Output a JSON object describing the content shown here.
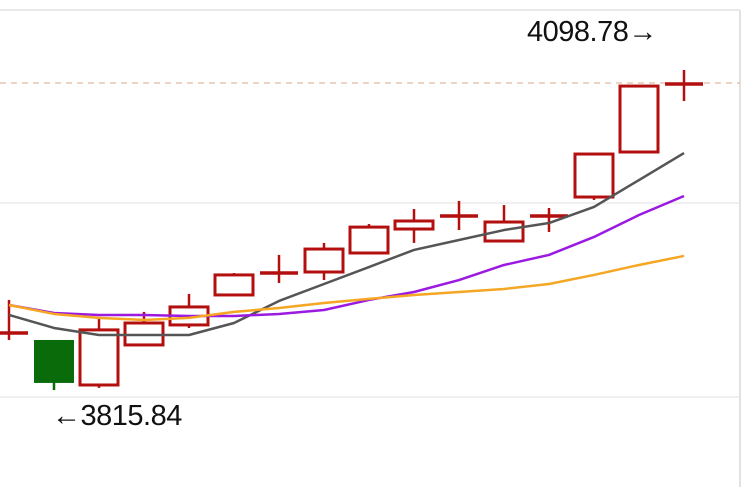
{
  "chart_data": {
    "type": "candlestick",
    "ylim": [
      3730.1,
      4160.7
    ],
    "grid": true,
    "reference_lines": [
      3981.2,
      3809.7
    ],
    "last_price_line": 4087.3,
    "annotations": {
      "max_label": "4098.78→",
      "min_label": "←3815.84"
    },
    "colors": {
      "up": "#b30f0f",
      "down": "#0a6b0a",
      "ma1": "#555555",
      "ma2": "#9b19e0",
      "ma3": "#f5a623",
      "grid": "#e2e2e2",
      "last_line": "#d9a88a"
    },
    "candles": [
      {
        "open": 3866.3,
        "close": 3866.3,
        "high": 3895.5,
        "low": 3860.1
      },
      {
        "open": 3860.1,
        "close": 3822.1,
        "high": 3860.1,
        "low": 3815.8
      },
      {
        "open": 3820.3,
        "close": 3869.0,
        "high": 3879.6,
        "low": 3817.7
      },
      {
        "open": 3855.7,
        "close": 3875.1,
        "high": 3884.9,
        "low": 3855.7
      },
      {
        "open": 3873.4,
        "close": 3889.3,
        "high": 3900.8,
        "low": 3870.7
      },
      {
        "open": 3899.9,
        "close": 3917.6,
        "high": 3919.3,
        "low": 3899.9
      },
      {
        "open": 3919.3,
        "close": 3919.3,
        "high": 3935.3,
        "low": 3910.5
      },
      {
        "open": 3920.2,
        "close": 3940.5,
        "high": 3945.9,
        "low": 3913.1
      },
      {
        "open": 3937.0,
        "close": 3959.9,
        "high": 3962.6,
        "low": 3937.0
      },
      {
        "open": 3958.2,
        "close": 3965.3,
        "high": 3975.9,
        "low": 3945.9
      },
      {
        "open": 3969.7,
        "close": 3969.7,
        "high": 3983.0,
        "low": 3957.3
      },
      {
        "open": 3947.6,
        "close": 3964.4,
        "high": 3979.4,
        "low": 3947.6
      },
      {
        "open": 3969.7,
        "close": 3969.7,
        "high": 3976.8,
        "low": 3955.6
      },
      {
        "open": 3986.5,
        "close": 4024.5,
        "high": 4025.4,
        "low": 3983.9
      },
      {
        "open": 4026.3,
        "close": 4084.6,
        "high": 4084.6,
        "low": 4026.3
      },
      {
        "open": 4086.4,
        "close": 4086.4,
        "high": 4098.8,
        "low": 4071.4
      }
    ],
    "series": [
      {
        "values": [
          3882.2,
          3870.7,
          3864.5,
          3864.5,
          3864.5,
          3875.1,
          3894.6,
          3909.6,
          3924.6,
          3939.7,
          3948.5,
          3957.3,
          3963.5,
          3977.7,
          4001.5,
          4025.4
        ]
      },
      {
        "values": [
          3891.0,
          3884.0,
          3882.2,
          3882.2,
          3881.3,
          3881.3,
          3883.1,
          3886.6,
          3895.5,
          3902.5,
          3913.1,
          3926.4,
          3935.3,
          3951.2,
          3970.6,
          3987.4
        ]
      },
      {
        "values": [
          3891.0,
          3883.1,
          3879.6,
          3877.8,
          3879.6,
          3884.9,
          3888.4,
          3892.8,
          3896.4,
          3899.9,
          3902.5,
          3905.2,
          3909.6,
          3917.6,
          3926.4,
          3934.4
        ]
      }
    ]
  }
}
